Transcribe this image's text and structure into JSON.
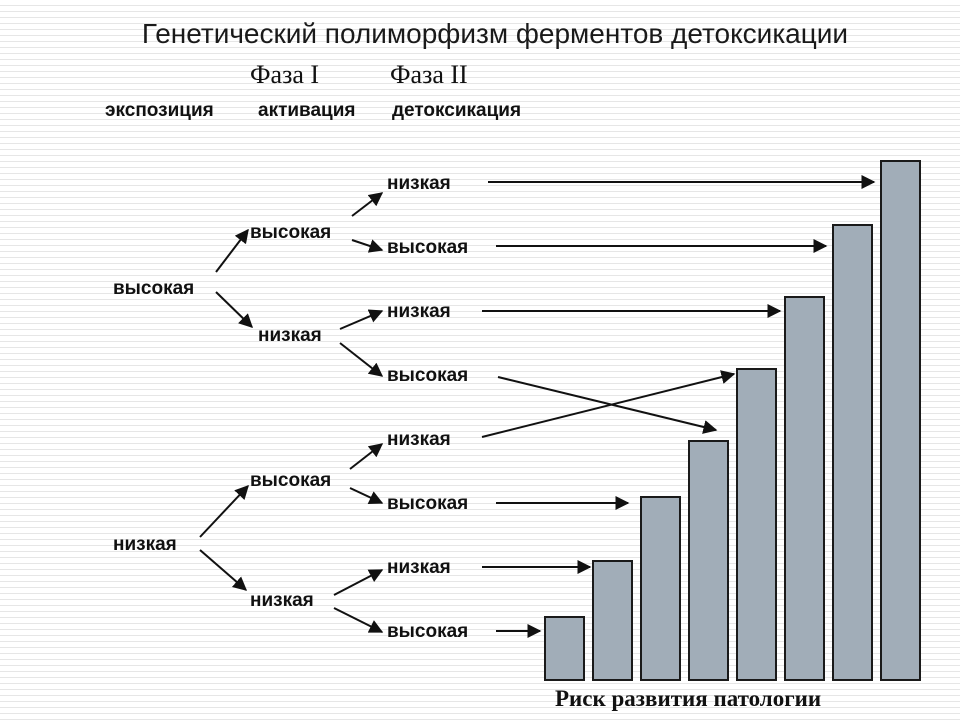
{
  "title": "Генетический полиморфизм ферментов детоксикации",
  "phases": {
    "phase1": "Фаза I",
    "phase2": "Фаза II"
  },
  "headers": {
    "exposure": "экспозиция",
    "activation": "активация",
    "detox": "детоксикация"
  },
  "tree": {
    "exposure": [
      "высокая",
      "низкая"
    ],
    "activation": [
      "высокая",
      "низкая",
      "высокая",
      "низкая"
    ],
    "detox": [
      "низкая",
      "высокая",
      "низкая",
      "высокая",
      "низкая",
      "высокая",
      "низкая",
      "высокая"
    ]
  },
  "risk_bar_levels": [
    1,
    2,
    3,
    4,
    5,
    6,
    7,
    8
  ],
  "caption": "Риск развития патологии"
}
